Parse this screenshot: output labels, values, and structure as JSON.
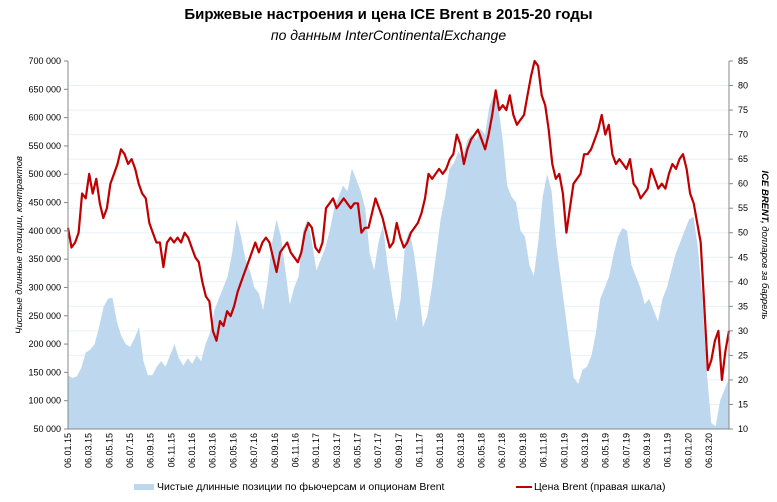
{
  "chart_data": {
    "type": "area+line",
    "title": "Биржевые настроения  и цена ICE Brent в 2015-20 годы",
    "subtitle": "по данным InterContinentalExchange",
    "ylabel_left": "Чистые длинные позиции, контрактов",
    "ylabel_right_bold": "ICE BRENT,",
    "ylabel_right_rest": " долларов за баррель",
    "ylim_left": [
      50000,
      700000
    ],
    "ylim_right": [
      10,
      85
    ],
    "left_ticks": [
      "700 000",
      "650 000",
      "600 000",
      "550 000",
      "500 000",
      "450 000",
      "400 000",
      "350 000",
      "300 000",
      "250 000",
      "200 000",
      "150 000",
      "100 000",
      "50 000"
    ],
    "right_ticks": [
      "85",
      "80",
      "75",
      "70",
      "65",
      "60",
      "55",
      "50",
      "45",
      "40",
      "35",
      "30",
      "25",
      "20",
      "15",
      "10"
    ],
    "x_tick_labels": [
      "06.01.15",
      "06.03.15",
      "06.05.15",
      "06.07.15",
      "06.09.15",
      "06.11.15",
      "06.01.16",
      "06.03.16",
      "06.05.16",
      "06.07.16",
      "06.09.16",
      "06.11.16",
      "06.01.17",
      "06.03.17",
      "06.05.17",
      "06.07.17",
      "06.09.17",
      "06.11.17",
      "06.01.18",
      "06.03.18",
      "06.05.18",
      "06.07.18",
      "06.09.18",
      "06.11.18",
      "06.01.19",
      "06.03.19",
      "06.05.19",
      "06.07.19",
      "06.09.19",
      "06.11.19",
      "06.01.20",
      "06.03.20"
    ],
    "grid": true,
    "legend_position": "bottom",
    "series": [
      {
        "name": "Чистые длинные позиции по фьючерсам и опционам Brent",
        "type": "area",
        "axis": "left",
        "color": "#bdd7ee",
        "values": [
          145000,
          140000,
          143000,
          158000,
          185000,
          190000,
          200000,
          230000,
          265000,
          280000,
          282000,
          240000,
          215000,
          200000,
          195000,
          210000,
          230000,
          170000,
          145000,
          145000,
          160000,
          170000,
          160000,
          180000,
          200000,
          175000,
          162000,
          175000,
          165000,
          180000,
          170000,
          200000,
          220000,
          260000,
          280000,
          300000,
          320000,
          360000,
          420000,
          390000,
          350000,
          330000,
          300000,
          290000,
          260000,
          310000,
          380000,
          420000,
          390000,
          330000,
          270000,
          300000,
          320000,
          400000,
          420000,
          380000,
          330000,
          350000,
          370000,
          400000,
          440000,
          460000,
          480000,
          470000,
          510000,
          490000,
          470000,
          440000,
          360000,
          330000,
          380000,
          410000,
          340000,
          290000,
          240000,
          280000,
          380000,
          400000,
          360000,
          300000,
          230000,
          250000,
          300000,
          360000,
          420000,
          460000,
          510000,
          520000,
          540000,
          530000,
          560000,
          570000,
          560000,
          580000,
          570000,
          620000,
          640000,
          620000,
          560000,
          480000,
          460000,
          450000,
          400000,
          390000,
          340000,
          320000,
          380000,
          460000,
          500000,
          470000,
          380000,
          320000,
          260000,
          200000,
          140000,
          130000,
          155000,
          160000,
          180000,
          220000,
          280000,
          300000,
          320000,
          360000,
          390000,
          405000,
          400000,
          340000,
          320000,
          300000,
          270000,
          280000,
          260000,
          240000,
          280000,
          300000,
          330000,
          360000,
          380000,
          400000,
          420000,
          425000,
          370000,
          280000,
          150000,
          60000,
          55000,
          100000,
          120000,
          140000
        ]
      },
      {
        "name": "Цена Brent (правая шкала)",
        "type": "line",
        "axis": "right",
        "color": "#c00000",
        "values": [
          51,
          47,
          48,
          50,
          58,
          57,
          62,
          58,
          61,
          56,
          53,
          55,
          60,
          62,
          64,
          67,
          66,
          64,
          65,
          63,
          60,
          58,
          57,
          52,
          50,
          48,
          48,
          43,
          48,
          49,
          48,
          49,
          48,
          50,
          49,
          47,
          45,
          44,
          40,
          37,
          36,
          30,
          28,
          32,
          31,
          34,
          33,
          35,
          38,
          40,
          42,
          44,
          46,
          48,
          46,
          48,
          49,
          48,
          45,
          42,
          46,
          47,
          48,
          46,
          45,
          44,
          46,
          50,
          52,
          51,
          47,
          46,
          48,
          55,
          56,
          57,
          55,
          56,
          57,
          56,
          55,
          56,
          56,
          50,
          51,
          51,
          54,
          57,
          55,
          53,
          50,
          47,
          48,
          52,
          49,
          47,
          48,
          50,
          51,
          52,
          54,
          57,
          62,
          61,
          62,
          63,
          62,
          63,
          65,
          66,
          70,
          68,
          64,
          67,
          69,
          70,
          71,
          69,
          67,
          70,
          74,
          79,
          75,
          76,
          75,
          78,
          74,
          72,
          73,
          74,
          78,
          82,
          85,
          84,
          78,
          76,
          71,
          64,
          61,
          62,
          58,
          50,
          55,
          60,
          61,
          62,
          66,
          66,
          67,
          69,
          71,
          74,
          70,
          72,
          66,
          64,
          65,
          64,
          63,
          65,
          60,
          59,
          57,
          58,
          59,
          63,
          61,
          59,
          60,
          59,
          62,
          64,
          63,
          65,
          66,
          63,
          58,
          56,
          52,
          48,
          35,
          22,
          24,
          28,
          30,
          20,
          26,
          30
        ]
      }
    ]
  },
  "legend": {
    "area_label": "Чистые длинные позиции по фьючерсам и опционам Brent",
    "line_label": "Цена Brent (правая шкала)"
  }
}
